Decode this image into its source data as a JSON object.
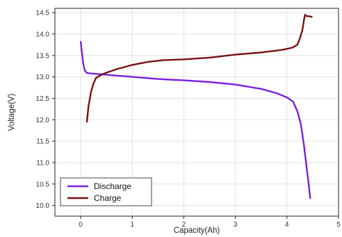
{
  "chart_data": {
    "type": "line",
    "title": "",
    "xlabel": "Capacity(Ah)",
    "ylabel": "Voltage(V)",
    "xlim": [
      -0.5,
      5
    ],
    "ylim": [
      9.75,
      14.6
    ],
    "x_ticks": [
      0,
      1,
      2,
      3,
      4,
      5
    ],
    "x_tick_labels": [
      "0",
      "1",
      "2",
      "3",
      "4",
      "5"
    ],
    "y_ticks": [
      10.0,
      10.5,
      11.0,
      11.5,
      12.0,
      12.5,
      13.0,
      13.5,
      14.0,
      14.5
    ],
    "y_tick_labels": [
      "10.0",
      "10.5",
      "11.0",
      "11.5",
      "12.0",
      "12.5",
      "13.0",
      "13.5",
      "14.0",
      "14.5"
    ],
    "grid": true,
    "legend_position": "bottom-left",
    "series": [
      {
        "name": "Discharge",
        "color": "#7a1fe0",
        "points": [
          [
            0.0,
            13.82
          ],
          [
            0.02,
            13.6
          ],
          [
            0.05,
            13.3
          ],
          [
            0.08,
            13.15
          ],
          [
            0.12,
            13.09
          ],
          [
            0.2,
            13.08
          ],
          [
            0.4,
            13.06
          ],
          [
            0.7,
            13.03
          ],
          [
            1.0,
            13.0
          ],
          [
            1.5,
            12.95
          ],
          [
            2.0,
            12.92
          ],
          [
            2.5,
            12.88
          ],
          [
            3.0,
            12.82
          ],
          [
            3.5,
            12.72
          ],
          [
            3.8,
            12.62
          ],
          [
            4.0,
            12.52
          ],
          [
            4.12,
            12.42
          ],
          [
            4.2,
            12.2
          ],
          [
            4.27,
            11.9
          ],
          [
            4.33,
            11.4
          ],
          [
            4.38,
            10.9
          ],
          [
            4.42,
            10.5
          ],
          [
            4.45,
            10.17
          ]
        ]
      },
      {
        "name": "Charge",
        "color": "#7a1010",
        "points": [
          [
            0.12,
            11.95
          ],
          [
            0.15,
            12.3
          ],
          [
            0.2,
            12.65
          ],
          [
            0.25,
            12.85
          ],
          [
            0.3,
            12.98
          ],
          [
            0.4,
            13.05
          ],
          [
            0.5,
            13.1
          ],
          [
            0.7,
            13.18
          ],
          [
            1.0,
            13.28
          ],
          [
            1.3,
            13.35
          ],
          [
            1.6,
            13.39
          ],
          [
            2.0,
            13.41
          ],
          [
            2.5,
            13.45
          ],
          [
            3.0,
            13.52
          ],
          [
            3.5,
            13.57
          ],
          [
            3.9,
            13.63
          ],
          [
            4.1,
            13.68
          ],
          [
            4.2,
            13.75
          ],
          [
            4.25,
            13.9
          ],
          [
            4.3,
            14.1
          ],
          [
            4.33,
            14.33
          ],
          [
            4.35,
            14.45
          ],
          [
            4.38,
            14.42
          ],
          [
            4.45,
            14.41
          ],
          [
            4.48,
            14.4
          ]
        ]
      }
    ]
  }
}
